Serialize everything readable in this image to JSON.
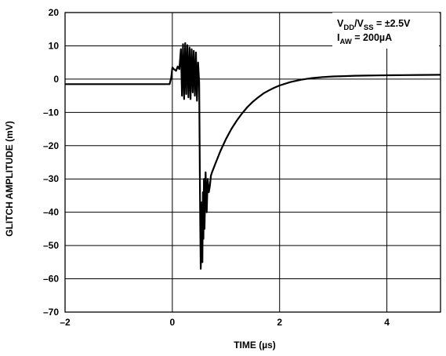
{
  "chart_data": {
    "type": "line",
    "xlabel": "TIME (µs)",
    "ylabel": "GLITCH AMPLITUDE (mV)",
    "xlim": [
      -2,
      5
    ],
    "ylim": [
      -70,
      20
    ],
    "x_ticks": [
      -2,
      0,
      2,
      4
    ],
    "x_tick_labels": [
      "–2",
      "0",
      "2",
      "4"
    ],
    "y_ticks": [
      20,
      10,
      0,
      -10,
      -20,
      -30,
      -40,
      -50,
      -60,
      -70
    ],
    "y_tick_labels": [
      "20",
      "10",
      "0",
      "–10",
      "–20",
      "–30",
      "–40",
      "–50",
      "–60",
      "–70"
    ],
    "grid": true,
    "annotation": {
      "line1": {
        "v1": "V",
        "v1_sub": "DD",
        "slash": "/V",
        "v2_sub": "SS",
        "rest": " = ±2.5V"
      },
      "line2": {
        "i": "I",
        "i_sub": "AW",
        "rest": " = 200µA"
      }
    },
    "series": [
      {
        "x": [
          -2.0,
          -1.0,
          -0.05,
          -0.02,
          0.0,
          0.03,
          0.07,
          0.1,
          0.13,
          0.16,
          0.18,
          0.2,
          0.22,
          0.24,
          0.26,
          0.28,
          0.3,
          0.32,
          0.34,
          0.36,
          0.38,
          0.4,
          0.42,
          0.44,
          0.46,
          0.48,
          0.5,
          0.52,
          0.53,
          0.54,
          0.55,
          0.56,
          0.57,
          0.58,
          0.59,
          0.6,
          0.62,
          0.64,
          0.66,
          0.68,
          0.7,
          0.72,
          0.74,
          0.8,
          0.9,
          1.0,
          1.1,
          1.2,
          1.3,
          1.4,
          1.5,
          1.6,
          1.7,
          1.8,
          1.9,
          2.0,
          2.2,
          2.4,
          2.6,
          2.8,
          3.0,
          3.2,
          3.4,
          3.6,
          3.8,
          4.0,
          4.3,
          4.6,
          5.0
        ],
        "y": [
          -1.5,
          -1.5,
          -1.5,
          0.5,
          3.5,
          3.0,
          2.5,
          3.8,
          3.0,
          9.0,
          -5.0,
          10.5,
          -6.0,
          10.8,
          -4.5,
          10.2,
          -5.5,
          9.5,
          -6.0,
          9.0,
          -4.0,
          8.5,
          -5.0,
          8.0,
          -6.5,
          5.0,
          -1.0,
          -42.0,
          -57.0,
          -50.0,
          -37.0,
          -55.0,
          -34.0,
          -48.0,
          -30.0,
          -45.0,
          -28.0,
          -40.0,
          -30.0,
          -34.0,
          -32.0,
          -29.0,
          -28.0,
          -25.5,
          -21.5,
          -18.0,
          -15.0,
          -12.5,
          -10.3,
          -8.4,
          -6.8,
          -5.5,
          -4.3,
          -3.4,
          -2.6,
          -1.9,
          -0.9,
          -0.2,
          0.3,
          0.6,
          0.8,
          0.9,
          1.0,
          1.05,
          1.1,
          1.15,
          1.2,
          1.25,
          1.3
        ]
      }
    ]
  }
}
